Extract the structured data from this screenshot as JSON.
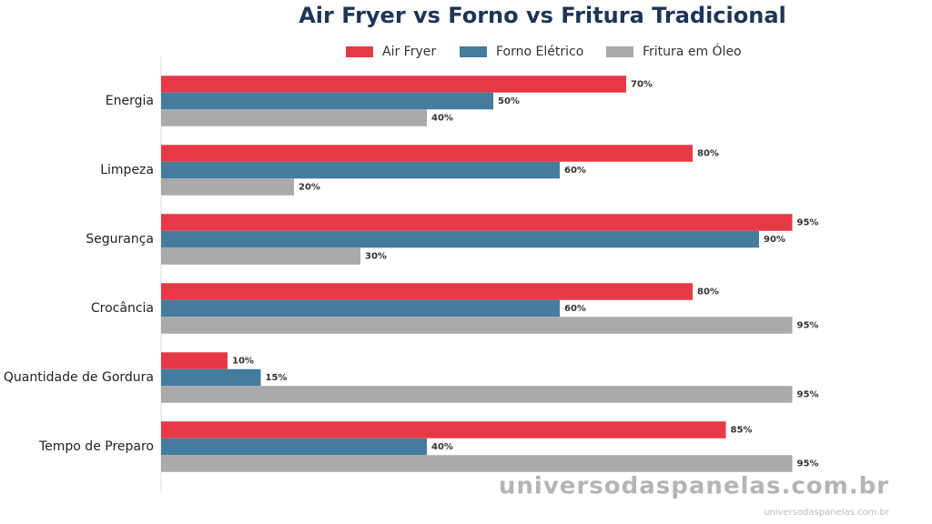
{
  "chart_data": {
    "type": "hbar",
    "title": "Air Fryer vs Forno vs Fritura Tradicional",
    "categories": [
      "Energia",
      "Limpeza",
      "Segurança",
      "Crocância",
      "Quantidade de Gordura",
      "Tempo de Preparo"
    ],
    "series": [
      {
        "name": "Air Fryer",
        "color": "#e63946",
        "values": [
          70,
          80,
          95,
          80,
          10,
          85
        ],
        "value_labels": [
          "70%",
          "80%",
          "95%",
          "80%",
          "10%",
          "85%"
        ]
      },
      {
        "name": "Forno Elétrico",
        "color": "#457b9d",
        "values": [
          50,
          60,
          90,
          60,
          15,
          40
        ],
        "value_labels": [
          "50%",
          "60%",
          "90%",
          "60%",
          "15%",
          "40%"
        ]
      },
      {
        "name": "Fritura em Óleo",
        "color": "#aaaaaa",
        "values": [
          40,
          20,
          30,
          95,
          95,
          95
        ],
        "value_labels": [
          "40%",
          "20%",
          "30%",
          "95%",
          "95%",
          "95%"
        ]
      }
    ],
    "xlim": [
      0,
      100
    ],
    "legend": "top",
    "annotations": [
      "universodaspanelas.com.br",
      "universodaspanelas.com.br"
    ]
  }
}
